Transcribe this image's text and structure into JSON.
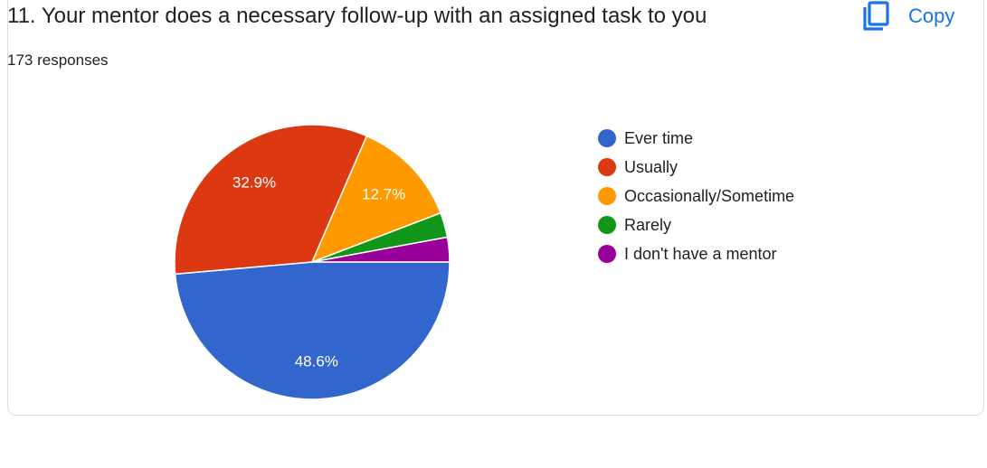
{
  "question": {
    "title": "11. Your mentor does a necessary follow-up with an assigned task to you",
    "responses": "173 responses",
    "copy_label": "Copy",
    "copy_icon": "copy-icon"
  },
  "chart_data": {
    "type": "pie",
    "start_angle": "90",
    "direction": "clockwise",
    "legend_position": "right",
    "slices": [
      {
        "name": "Ever time",
        "value": 48.6,
        "label": "48.6%",
        "color": "#3366cc"
      },
      {
        "name": "Usually",
        "value": 32.9,
        "label": "32.9%",
        "color": "#dc3912"
      },
      {
        "name": "Occasionally/Sometime",
        "value": 12.7,
        "label": "12.7%",
        "color": "#ff9900"
      },
      {
        "name": "Rarely",
        "value": 2.9,
        "label": "",
        "color": "#109618"
      },
      {
        "name": "I don't have a mentor",
        "value": 2.9,
        "label": "",
        "color": "#990099"
      }
    ]
  }
}
